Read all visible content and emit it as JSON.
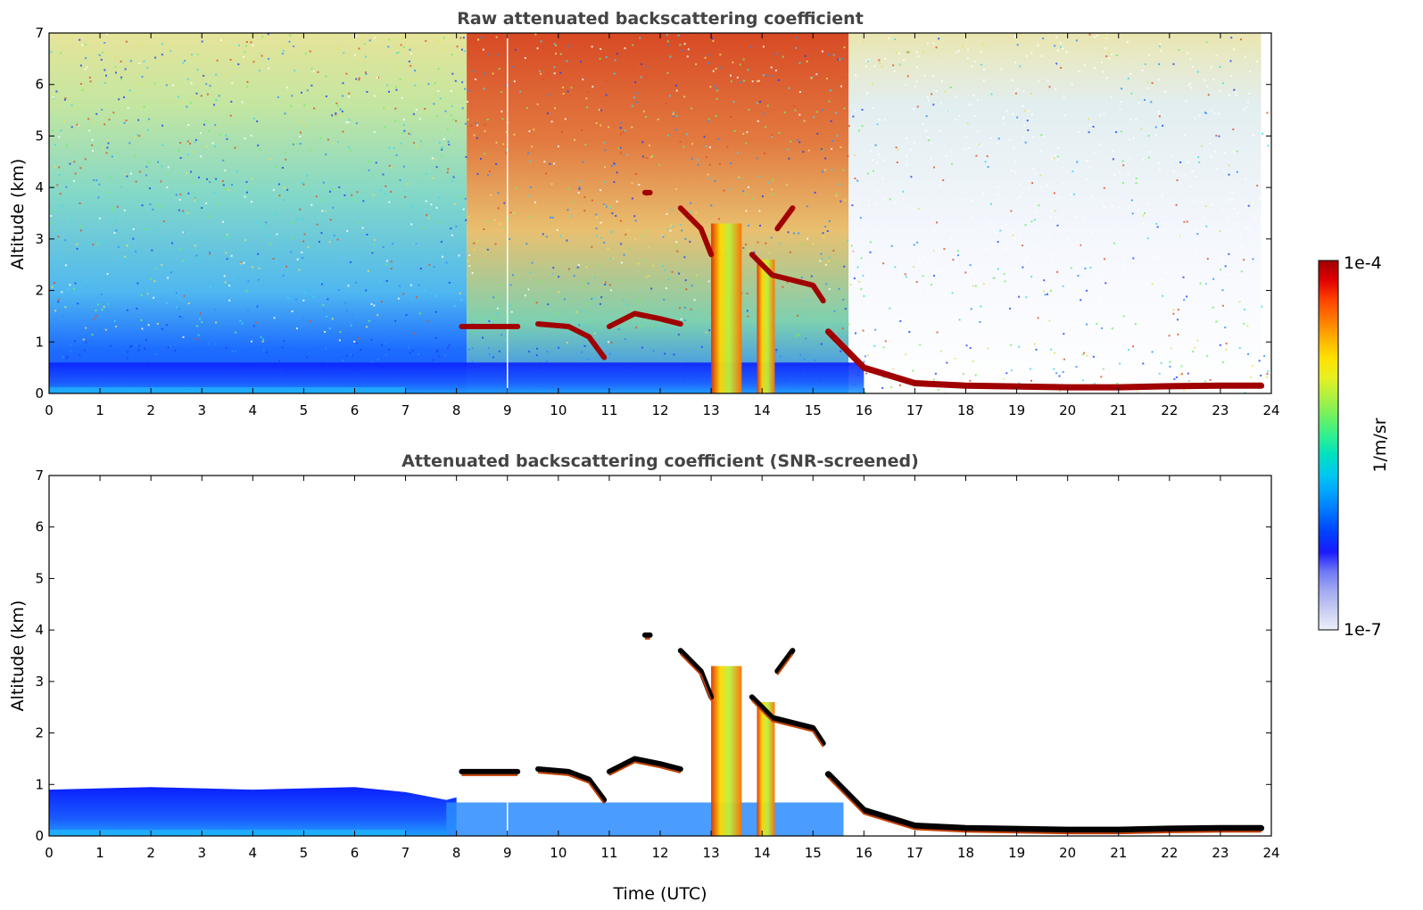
{
  "chart_data": [
    {
      "type": "heatmap",
      "title": "Raw attenuated backscattering coefficient",
      "xlabel": "",
      "ylabel": "Altitude (km)",
      "xlim": [
        0,
        24
      ],
      "ylim": [
        0,
        7
      ],
      "xticks": [
        "0",
        "1",
        "2",
        "3",
        "4",
        "5",
        "6",
        "7",
        "8",
        "9",
        "10",
        "11",
        "12",
        "13",
        "14",
        "15",
        "16",
        "17",
        "18",
        "19",
        "20",
        "21",
        "22",
        "23",
        "24"
      ],
      "yticks": [
        "0",
        "1",
        "2",
        "3",
        "4",
        "5",
        "6",
        "7"
      ],
      "color_scale": "log",
      "cloud_layers": [
        {
          "x": [
            8.1,
            9.2
          ],
          "y": [
            1.3,
            1.3
          ]
        },
        {
          "x": [
            9.6,
            10.2,
            10.6,
            10.9
          ],
          "y": [
            1.35,
            1.3,
            1.1,
            0.7
          ]
        },
        {
          "x": [
            11.0,
            11.5,
            12.0,
            12.4
          ],
          "y": [
            1.3,
            1.55,
            1.45,
            1.35
          ]
        },
        {
          "x": [
            11.7,
            11.8
          ],
          "y": [
            3.9,
            3.9
          ]
        },
        {
          "x": [
            12.4,
            12.8,
            13.0
          ],
          "y": [
            3.6,
            3.2,
            2.7
          ]
        },
        {
          "x": [
            13.8,
            14.2,
            14.6,
            15.0,
            15.2
          ],
          "y": [
            2.7,
            2.3,
            2.2,
            2.1,
            1.8
          ]
        },
        {
          "x": [
            14.3,
            14.6
          ],
          "y": [
            3.2,
            3.6
          ]
        },
        {
          "x": [
            15.3,
            16.0,
            17.0,
            18.0,
            20.0,
            21.0,
            22.0,
            23.0,
            23.8
          ],
          "y": [
            1.2,
            0.5,
            0.2,
            0.15,
            0.12,
            0.12,
            0.14,
            0.15,
            0.15
          ]
        }
      ],
      "precipitation_shafts": [
        {
          "x": [
            13.0,
            13.6
          ],
          "y": [
            0,
            3.3
          ]
        },
        {
          "x": [
            13.9,
            14.25
          ],
          "y": [
            0,
            2.6
          ]
        }
      ]
    },
    {
      "type": "heatmap",
      "title": "Attenuated backscattering coefficient (SNR-screened)",
      "xlabel": "Time (UTC)",
      "ylabel": "Altitude (km)",
      "xlim": [
        0,
        24
      ],
      "ylim": [
        0,
        7
      ],
      "xticks": [
        "0",
        "1",
        "2",
        "3",
        "4",
        "5",
        "6",
        "7",
        "8",
        "9",
        "10",
        "11",
        "12",
        "13",
        "14",
        "15",
        "16",
        "17",
        "18",
        "19",
        "20",
        "21",
        "22",
        "23",
        "24"
      ],
      "yticks": [
        "0",
        "1",
        "2",
        "3",
        "4",
        "5",
        "6",
        "7"
      ],
      "color_scale": "log",
      "boundary_layer_top": {
        "x": [
          0,
          2,
          4,
          6,
          7,
          7.8,
          8.0
        ],
        "y": [
          0.9,
          0.95,
          0.9,
          0.95,
          0.85,
          0.7,
          0.75
        ]
      },
      "cloud_layers": [
        {
          "x": [
            8.1,
            9.2
          ],
          "y": [
            1.25,
            1.25
          ]
        },
        {
          "x": [
            9.6,
            10.2,
            10.6,
            10.9
          ],
          "y": [
            1.3,
            1.25,
            1.1,
            0.7
          ]
        },
        {
          "x": [
            11.0,
            11.5,
            12.0,
            12.4
          ],
          "y": [
            1.25,
            1.5,
            1.4,
            1.3
          ]
        },
        {
          "x": [
            11.7,
            11.8
          ],
          "y": [
            3.9,
            3.9
          ]
        },
        {
          "x": [
            12.4,
            12.8,
            13.0
          ],
          "y": [
            3.6,
            3.2,
            2.7
          ]
        },
        {
          "x": [
            13.8,
            14.2,
            14.6,
            15.0,
            15.2
          ],
          "y": [
            2.7,
            2.3,
            2.2,
            2.1,
            1.8
          ]
        },
        {
          "x": [
            14.3,
            14.6
          ],
          "y": [
            3.2,
            3.6
          ]
        },
        {
          "x": [
            15.3,
            16.0,
            17.0,
            18.0,
            20.0,
            21.0,
            22.0,
            23.0,
            23.8
          ],
          "y": [
            1.2,
            0.5,
            0.2,
            0.15,
            0.12,
            0.12,
            0.14,
            0.15,
            0.15
          ]
        }
      ]
    }
  ],
  "colorbar": {
    "max_label": "1e-4",
    "min_label": "1e-7",
    "unit_label": "1/m/sr",
    "colors": [
      "#eef0fa",
      "#c9cdf2",
      "#a3aaf0",
      "#6f78f5",
      "#1a1aff",
      "#0040ff",
      "#0070ff",
      "#00a0ff",
      "#00c8f0",
      "#00e0c0",
      "#30f090",
      "#70f060",
      "#b0f040",
      "#e8f020",
      "#ffe000",
      "#ffb000",
      "#ff7800",
      "#ff4000",
      "#e00000",
      "#a00000"
    ]
  },
  "palette": {
    "noise_cold": "#1565ff",
    "noise_mid": "#40d8f0",
    "noise_warm": "#e8e060",
    "noise_hot": "#e05020",
    "boundary_layer": "#1a5cff",
    "cloud": "#a00000",
    "rain_core": "#ffd800",
    "rain_edge": "#e03000",
    "screened_cloud": "#000000"
  }
}
